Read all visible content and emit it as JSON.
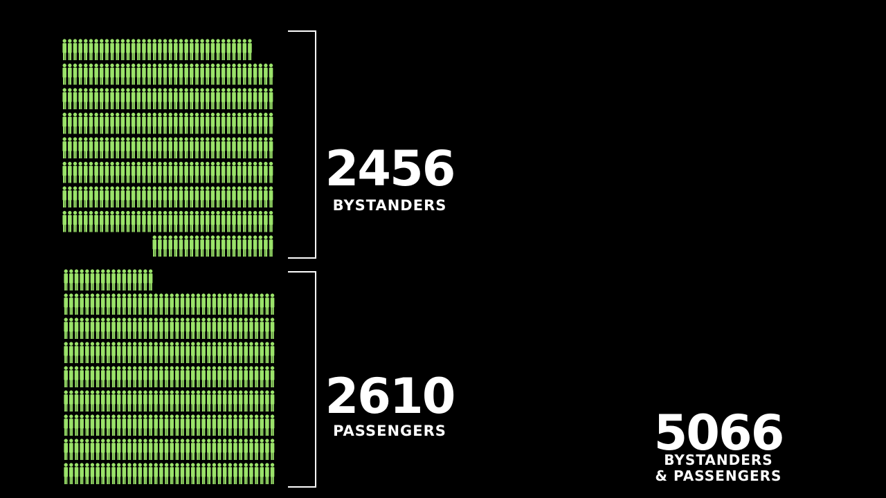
{
  "groups": [
    {
      "count": 2456,
      "label": "BYSTANDERS"
    },
    {
      "count": 2610,
      "label": "PASSENGERS"
    }
  ],
  "total": {
    "count": 5066,
    "label_lines": [
      "BYSTANDERS",
      "& PASSENGERS"
    ]
  }
}
